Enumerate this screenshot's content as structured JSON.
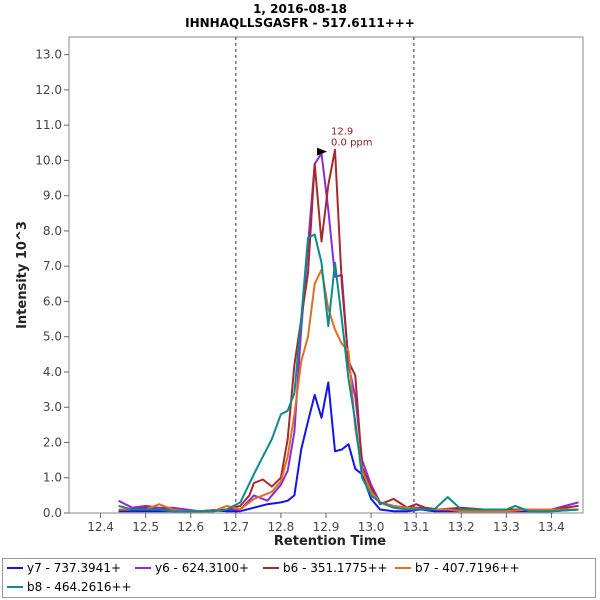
{
  "chart_data": {
    "type": "line",
    "title": "1, 2016-08-18",
    "subtitle": "IHNHAQLLSGASFR - 517.6111+++",
    "xlabel": "Retention Time",
    "ylabel": "Intensity 10^3",
    "xlim": [
      12.33,
      13.47
    ],
    "ylim": [
      0,
      13.5
    ],
    "x_ticks": [
      12.4,
      12.5,
      12.6,
      12.7,
      12.8,
      12.9,
      13.0,
      13.1,
      13.2,
      13.3,
      13.4
    ],
    "y_ticks": [
      0.0,
      1.0,
      2.0,
      3.0,
      4.0,
      5.0,
      6.0,
      7.0,
      8.0,
      9.0,
      10.0,
      11.0,
      12.0,
      13.0
    ],
    "grid": false,
    "integration_bounds": [
      12.7,
      13.095
    ],
    "peak_annotation": {
      "x": 12.9,
      "y": 10.25,
      "label": "12.9",
      "sublabel": "0.0 ppm"
    },
    "series": [
      {
        "name": "y7 - 737.3941+",
        "color": "#1414e6",
        "x": [
          12.44,
          12.47,
          12.5,
          12.53,
          12.56,
          12.59,
          12.62,
          12.65,
          12.68,
          12.71,
          12.74,
          12.77,
          12.8,
          12.815,
          12.83,
          12.845,
          12.86,
          12.875,
          12.89,
          12.905,
          12.92,
          12.935,
          12.95,
          12.965,
          12.98,
          13.0,
          13.02,
          13.05,
          13.08,
          13.11,
          13.14,
          13.17,
          13.2,
          13.25,
          13.3,
          13.35,
          13.4,
          13.46
        ],
        "y": [
          0.05,
          0.05,
          0.05,
          0.05,
          0.05,
          0.05,
          0.05,
          0.08,
          0.05,
          0.05,
          0.15,
          0.25,
          0.3,
          0.35,
          0.5,
          1.8,
          2.6,
          3.35,
          2.7,
          3.7,
          1.75,
          1.8,
          1.95,
          1.25,
          1.1,
          0.4,
          0.1,
          0.05,
          0.05,
          0.1,
          0.05,
          0.05,
          0.05,
          0.05,
          0.05,
          0.05,
          0.05,
          0.1
        ]
      },
      {
        "name": "y6 - 624.3100+",
        "color": "#8a2be2",
        "x": [
          12.44,
          12.47,
          12.5,
          12.53,
          12.56,
          12.59,
          12.62,
          12.65,
          12.68,
          12.71,
          12.74,
          12.77,
          12.8,
          12.815,
          12.83,
          12.845,
          12.86,
          12.875,
          12.89,
          12.905,
          12.92,
          12.935,
          12.95,
          12.965,
          12.98,
          13.0,
          13.02,
          13.05,
          13.08,
          13.11,
          13.14,
          13.17,
          13.2,
          13.25,
          13.3,
          13.35,
          13.4,
          13.46
        ],
        "y": [
          0.35,
          0.15,
          0.2,
          0.15,
          0.15,
          0.1,
          0.05,
          0.05,
          0.1,
          0.1,
          0.5,
          0.35,
          0.8,
          1.2,
          2.3,
          5.2,
          7.6,
          9.9,
          10.2,
          8.6,
          6.7,
          6.75,
          4.2,
          3.3,
          1.5,
          0.8,
          0.3,
          0.2,
          0.15,
          0.15,
          0.1,
          0.1,
          0.1,
          0.1,
          0.1,
          0.1,
          0.1,
          0.3
        ]
      },
      {
        "name": "b6 - 351.1775++",
        "color": "#a52a2a",
        "x": [
          12.44,
          12.47,
          12.5,
          12.53,
          12.56,
          12.59,
          12.62,
          12.65,
          12.68,
          12.71,
          12.73,
          12.74,
          12.76,
          12.78,
          12.8,
          12.815,
          12.83,
          12.845,
          12.86,
          12.875,
          12.89,
          12.905,
          12.92,
          12.935,
          12.95,
          12.965,
          12.98,
          13.0,
          13.02,
          13.05,
          13.08,
          13.1,
          13.12,
          13.15,
          13.2,
          13.25,
          13.3,
          13.35,
          13.4,
          13.46
        ],
        "y": [
          0.1,
          0.1,
          0.15,
          0.1,
          0.1,
          0.05,
          0.05,
          0.08,
          0.1,
          0.2,
          0.5,
          0.85,
          0.95,
          0.75,
          1.0,
          2.1,
          4.2,
          5.5,
          6.8,
          9.9,
          7.7,
          9.3,
          10.3,
          6.5,
          4.3,
          3.9,
          1.3,
          0.7,
          0.25,
          0.4,
          0.15,
          0.25,
          0.15,
          0.1,
          0.15,
          0.1,
          0.1,
          0.1,
          0.1,
          0.2
        ]
      },
      {
        "name": "b7 - 407.7196++",
        "color": "#e07020",
        "x": [
          12.44,
          12.47,
          12.5,
          12.53,
          12.56,
          12.59,
          12.62,
          12.65,
          12.68,
          12.71,
          12.74,
          12.76,
          12.78,
          12.8,
          12.815,
          12.83,
          12.845,
          12.86,
          12.875,
          12.89,
          12.905,
          12.92,
          12.935,
          12.95,
          12.965,
          12.98,
          13.0,
          13.02,
          13.05,
          13.08,
          13.11,
          13.14,
          13.17,
          13.2,
          13.25,
          13.3,
          13.35,
          13.4,
          13.46
        ],
        "y": [
          0.1,
          0.1,
          0.1,
          0.25,
          0.1,
          0.05,
          0.05,
          0.05,
          0.2,
          0.1,
          0.4,
          0.5,
          0.6,
          0.9,
          1.6,
          2.8,
          4.3,
          5.0,
          6.5,
          6.9,
          5.8,
          5.2,
          4.8,
          4.6,
          2.4,
          1.2,
          0.6,
          0.3,
          0.2,
          0.15,
          0.1,
          0.1,
          0.1,
          0.05,
          0.05,
          0.05,
          0.1,
          0.1,
          0.1
        ]
      },
      {
        "name": "b8 - 464.2616++",
        "color": "#0f8a8a",
        "x": [
          12.44,
          12.47,
          12.5,
          12.53,
          12.56,
          12.59,
          12.62,
          12.65,
          12.68,
          12.71,
          12.74,
          12.76,
          12.78,
          12.8,
          12.815,
          12.83,
          12.845,
          12.86,
          12.875,
          12.89,
          12.905,
          12.92,
          12.935,
          12.95,
          12.965,
          12.98,
          13.0,
          13.02,
          13.05,
          13.08,
          13.11,
          13.14,
          13.17,
          13.2,
          13.25,
          13.3,
          13.32,
          13.35,
          13.4,
          13.46
        ],
        "y": [
          0.2,
          0.1,
          0.1,
          0.1,
          0.05,
          0.05,
          0.05,
          0.05,
          0.1,
          0.3,
          1.1,
          1.6,
          2.1,
          2.8,
          2.9,
          3.4,
          5.5,
          7.8,
          7.9,
          7.1,
          5.3,
          7.1,
          5.5,
          3.8,
          2.6,
          1.0,
          0.5,
          0.3,
          0.15,
          0.1,
          0.1,
          0.1,
          0.45,
          0.1,
          0.1,
          0.1,
          0.2,
          0.05,
          0.05,
          0.1
        ]
      }
    ]
  }
}
